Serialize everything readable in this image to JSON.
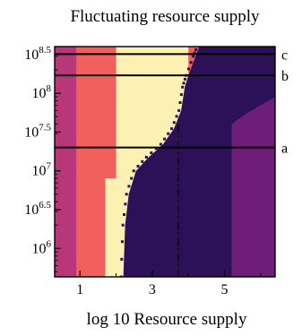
{
  "chart_data": {
    "type": "heatmap",
    "title": "Fluctuating resource supply",
    "xlabel": "log 10 Resource supply",
    "ylabel": "",
    "x_scale": "linear",
    "y_scale": "log",
    "xlim": [
      0.3,
      6.4
    ],
    "ylim": [
      430000,
      400000000
    ],
    "x_ticks": [
      {
        "value": 1,
        "label": "1"
      },
      {
        "value": 3,
        "label": "3"
      },
      {
        "value": 5,
        "label": "5"
      }
    ],
    "y_ticks": [
      {
        "value": 1000000,
        "base": "10",
        "exp": "6"
      },
      {
        "value": 3162278,
        "base": "10",
        "exp": "6.5"
      },
      {
        "value": 10000000,
        "base": "10",
        "exp": "7"
      },
      {
        "value": 31622777,
        "base": "10",
        "exp": "7.5"
      },
      {
        "value": 100000000,
        "base": "10",
        "exp": "8"
      },
      {
        "value": 316227766,
        "base": "10",
        "exp": "8.5"
      }
    ],
    "grid": false,
    "legend": "none",
    "colormap": [
      "#2c1158",
      "#6e1e79",
      "#b73779",
      "#f1605d",
      "#fcf1b2"
    ],
    "reference_lines": [
      {
        "label": "a",
        "y": 20000000
      },
      {
        "label": "b",
        "y": 170000000
      },
      {
        "label": "c",
        "y": 320000000
      }
    ],
    "bands": {
      "x_edges": [
        0.3,
        0.9,
        2.0,
        4.0,
        5.2,
        6.4
      ],
      "colors": [
        "#b73779",
        "#f1605d",
        "#fcf1b2",
        "#f1605d",
        "#6e1e79"
      ]
    },
    "bottom_light_band": {
      "x_start": 1.7,
      "x_end": 2.3
    },
    "dark_region": {
      "boundary": [
        [
          2.2,
          430000
        ],
        [
          2.25,
          2000000
        ],
        [
          2.35,
          5000000
        ],
        [
          2.55,
          10000000
        ],
        [
          2.9,
          15000000
        ],
        [
          3.3,
          22000000
        ],
        [
          3.6,
          35000000
        ],
        [
          3.8,
          60000000
        ],
        [
          3.9,
          120000000
        ],
        [
          4.0,
          170000000
        ],
        [
          4.2,
          300000000
        ],
        [
          4.3,
          400000000
        ]
      ],
      "color": "#2c1158"
    },
    "right_purple_region": {
      "boundary": [
        [
          5.2,
          430000
        ],
        [
          5.2,
          40000000
        ],
        [
          5.6,
          55000000
        ],
        [
          6.0,
          70000000
        ],
        [
          6.4,
          90000000
        ]
      ],
      "color": "#6e1e79"
    }
  }
}
